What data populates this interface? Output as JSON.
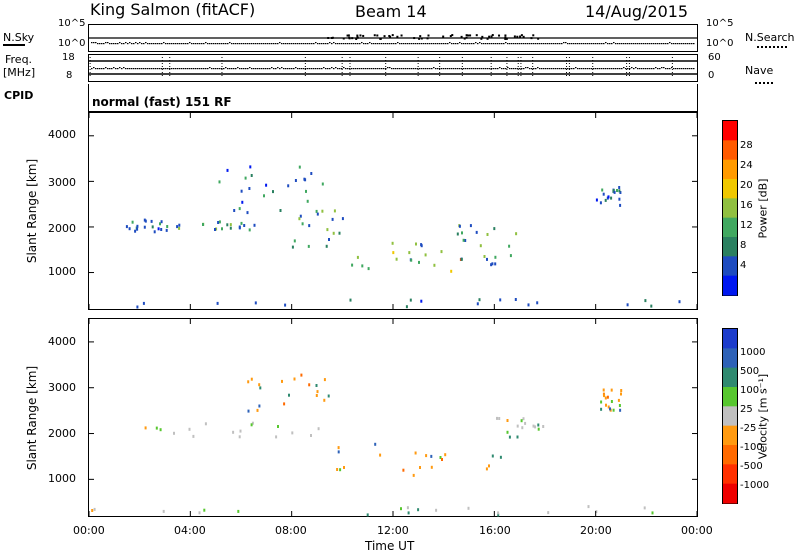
{
  "header": {
    "station": "King Salmon (fitACF)",
    "beam": "Beam 14",
    "date": "14/Aug/2015"
  },
  "top_strips": {
    "nsky_label": "N.Sky",
    "nsky_ticks": [
      "10^5",
      "10^0"
    ],
    "nsearch_label": "N.Search",
    "nsearch_ticks": [
      "10^5",
      "10^0"
    ],
    "freq_label": "Freq.",
    "freq_unit": "[MHz]",
    "freq_ticks": [
      "18",
      "8"
    ],
    "nave_label": "Nave",
    "nave_ticks": [
      "60",
      "0"
    ],
    "cpid_label": "CPID",
    "cpid_text": "normal (fast) 151 RF"
  },
  "chart_data": [
    {
      "type": "heatmap",
      "ylabel": "Slant Range [km]",
      "yticks": [
        "4000",
        "3000",
        "2000",
        "1000"
      ],
      "ylim": [
        200,
        4500
      ],
      "xlim": [
        "00:00",
        "24:00"
      ],
      "colorbar": {
        "label": "Power [dB]",
        "ticks": [
          "28",
          "24",
          "20",
          "16",
          "12",
          "8",
          "4"
        ],
        "colors": [
          "#ff0000",
          "#ff5a00",
          "#ff9a00",
          "#f0c800",
          "#90c040",
          "#40a860",
          "#2a8060",
          "#1e4cc0",
          "#0018f0"
        ]
      },
      "echo_regions": [
        {
          "t": [
            1.2,
            3.5
          ],
          "r": [
            1900,
            2200
          ],
          "level": "low"
        },
        {
          "t": [
            3.5,
            6.5
          ],
          "r": [
            1950,
            2150
          ],
          "level": "mid"
        },
        {
          "t": [
            5.0,
            9.5
          ],
          "r": [
            2300,
            3400
          ],
          "level": "low"
        },
        {
          "t": [
            8.0,
            10.0
          ],
          "r": [
            1500,
            2400
          ],
          "level": "mid"
        },
        {
          "t": [
            10.0,
            15.5
          ],
          "r": [
            1050,
            1700
          ],
          "level": "high"
        },
        {
          "t": [
            14.5,
            17.0
          ],
          "r": [
            1200,
            2100
          ],
          "level": "mid"
        },
        {
          "t": [
            20.0,
            21.0
          ],
          "r": [
            2500,
            2900
          ],
          "level": "low"
        },
        {
          "t": [
            0.0,
            24.0
          ],
          "r": [
            250,
            450
          ],
          "level": "low"
        }
      ]
    },
    {
      "type": "heatmap",
      "ylabel": "Slant Range [km]",
      "yticks": [
        "4000",
        "3000",
        "2000",
        "1000"
      ],
      "ylim": [
        200,
        4500
      ],
      "xlim": [
        "00:00",
        "24:00"
      ],
      "colorbar": {
        "label": "Velocity [m s⁻¹]",
        "ticks": [
          "1000",
          "500",
          "100",
          "25",
          "-25",
          "-100",
          "-500",
          "-1000"
        ],
        "colors": [
          "#1c3ccc",
          "#2e62b8",
          "#2f8a70",
          "#57c72f",
          "#c0c0c0",
          "#ff9a10",
          "#ff6a00",
          "#ff3000",
          "#ee0000"
        ]
      },
      "echo_regions": [
        {
          "t": [
            2.0,
            9.5
          ],
          "r": [
            1950,
            2300
          ],
          "level": "ground"
        },
        {
          "t": [
            6.0,
            9.5
          ],
          "r": [
            2500,
            3400
          ],
          "level": "neg"
        },
        {
          "t": [
            9.5,
            16.5
          ],
          "r": [
            1100,
            1800
          ],
          "level": "neg"
        },
        {
          "t": [
            16.0,
            18.0
          ],
          "r": [
            1900,
            2400
          ],
          "level": "ground"
        },
        {
          "t": [
            20.0,
            21.0
          ],
          "r": [
            2500,
            3000
          ],
          "level": "neg"
        },
        {
          "t": [
            0.0,
            24.0
          ],
          "r": [
            250,
            450
          ],
          "level": "ground"
        }
      ]
    }
  ],
  "xaxis": {
    "ticks": [
      "00:00",
      "04:00",
      "08:00",
      "12:00",
      "16:00",
      "20:00",
      "00:00"
    ],
    "label": "Time UT"
  }
}
